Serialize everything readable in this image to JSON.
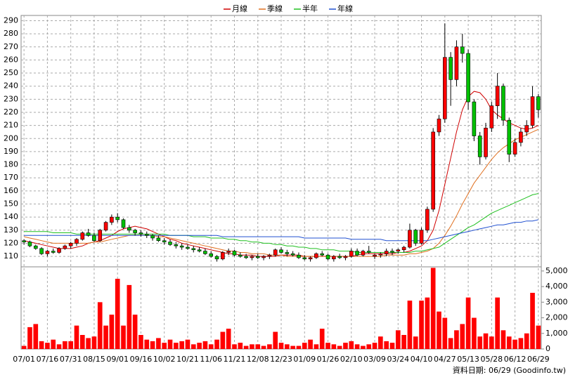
{
  "chart_data": {
    "type": "candlestick",
    "legend": "top",
    "grid": true,
    "source": "資料日期: 06/29 (Goodinfo.tw)",
    "up_color": "#ff0000",
    "down_color": "#00c000",
    "categories": [
      "07/01",
      null,
      null,
      null,
      "07/16",
      null,
      null,
      null,
      "07/31",
      null,
      null,
      null,
      "08/15",
      null,
      null,
      null,
      "09/01",
      null,
      null,
      null,
      "09/16",
      null,
      null,
      null,
      "10/02",
      null,
      null,
      null,
      "10/21",
      null,
      null,
      null,
      "11/06",
      null,
      null,
      null,
      "11/21",
      null,
      null,
      null,
      "12/08",
      null,
      null,
      null,
      "12/23",
      null,
      null,
      null,
      "01/09",
      null,
      null,
      null,
      "01/26",
      null,
      null,
      null,
      "02/10",
      null,
      null,
      null,
      "03/09",
      null,
      null,
      null,
      "03/24",
      null,
      null,
      null,
      "04/10",
      null,
      null,
      null,
      "04/27",
      null,
      null,
      null,
      "05/13",
      null,
      null,
      null,
      "05/28",
      null,
      null,
      null,
      "06/12",
      null,
      null,
      null,
      "06/29"
    ],
    "open": [
      122,
      121,
      118,
      116,
      112,
      114,
      113,
      116,
      118,
      120,
      123,
      128,
      126,
      122,
      130,
      136,
      140,
      138,
      132,
      130,
      128,
      127,
      126,
      124,
      122,
      121,
      119,
      118,
      117,
      116,
      115,
      114,
      112,
      110,
      108,
      113,
      114,
      111,
      110,
      109,
      110,
      109,
      110,
      111,
      115,
      113,
      112,
      111,
      109,
      108,
      109,
      112,
      111,
      108,
      110,
      109,
      110,
      114,
      111,
      114,
      110,
      111,
      112,
      114,
      114,
      115,
      117,
      130,
      120,
      130,
      146,
      205,
      215,
      262,
      245,
      270,
      265,
      228,
      202,
      186,
      208,
      225,
      240,
      214,
      188,
      197,
      205,
      210,
      232
    ],
    "high": [
      123,
      122,
      119,
      117,
      115,
      116,
      117,
      119,
      121,
      124,
      129,
      131,
      128,
      131,
      137,
      142,
      143,
      139,
      134,
      131,
      130,
      129,
      127,
      126,
      124,
      123,
      121,
      120,
      119,
      118,
      117,
      116,
      114,
      111,
      114,
      116,
      115,
      113,
      112,
      111,
      112,
      111,
      112,
      116,
      117,
      115,
      114,
      113,
      111,
      110,
      113,
      114,
      112,
      111,
      112,
      111,
      116,
      116,
      115,
      118,
      112,
      113,
      116,
      116,
      116,
      118,
      135,
      131,
      132,
      148,
      208,
      218,
      288,
      266,
      275,
      280,
      268,
      230,
      205,
      212,
      228,
      250,
      242,
      216,
      200,
      208,
      214,
      240,
      234
    ],
    "low": [
      119,
      117,
      115,
      111,
      110,
      112,
      112,
      115,
      116,
      118,
      122,
      125,
      121,
      121,
      129,
      134,
      136,
      131,
      128,
      126,
      125,
      124,
      122,
      121,
      119,
      118,
      116,
      115,
      115,
      113,
      113,
      111,
      109,
      106,
      107,
      111,
      110,
      109,
      108,
      107,
      108,
      107,
      108,
      110,
      112,
      110,
      110,
      108,
      107,
      106,
      108,
      110,
      107,
      106,
      108,
      107,
      109,
      110,
      110,
      112,
      108,
      109,
      110,
      111,
      112,
      113,
      116,
      118,
      119,
      128,
      144,
      202,
      212,
      225,
      240,
      258,
      222,
      198,
      180,
      184,
      205,
      215,
      210,
      182,
      186,
      194,
      202,
      208,
      216
    ],
    "close": [
      121,
      118,
      116,
      112,
      114,
      113,
      116,
      118,
      120,
      123,
      128,
      126,
      122,
      130,
      136,
      140,
      138,
      132,
      130,
      128,
      127,
      126,
      124,
      122,
      121,
      119,
      118,
      117,
      116,
      115,
      114,
      112,
      110,
      108,
      113,
      114,
      111,
      110,
      109,
      110,
      109,
      110,
      111,
      115,
      113,
      112,
      111,
      109,
      108,
      109,
      112,
      111,
      108,
      110,
      109,
      110,
      114,
      111,
      114,
      113,
      111,
      112,
      114,
      113,
      115,
      117,
      130,
      120,
      130,
      146,
      205,
      215,
      262,
      245,
      270,
      265,
      228,
      202,
      186,
      208,
      225,
      240,
      214,
      188,
      197,
      205,
      210,
      232,
      222
    ],
    "ylim": [
      102,
      294
    ],
    "yticks": [
      110,
      120,
      130,
      140,
      150,
      160,
      170,
      180,
      190,
      200,
      210,
      220,
      230,
      240,
      250,
      260,
      270,
      280,
      290
    ],
    "series": [
      {
        "name": "月線",
        "color": "#d00000",
        "values": [
          122,
          121,
          120,
          119,
          118,
          117,
          116,
          116,
          116,
          117,
          118,
          120,
          121,
          122,
          124,
          126,
          129,
          131,
          132,
          133,
          132,
          131,
          129,
          127,
          125,
          123,
          122,
          120,
          119,
          118,
          117,
          116,
          115,
          114,
          113,
          112,
          112,
          111,
          111,
          111,
          110,
          110,
          110,
          110,
          111,
          111,
          111,
          111,
          110,
          110,
          110,
          110,
          110,
          110,
          110,
          110,
          110,
          111,
          112,
          112,
          112,
          112,
          112,
          112,
          113,
          113,
          114,
          116,
          118,
          122,
          130,
          145,
          165,
          185,
          205,
          222,
          232,
          236,
          235,
          230,
          222,
          218,
          215,
          212,
          210,
          208,
          207,
          208,
          210
        ]
      },
      {
        "name": "季線",
        "color": "#e07020",
        "values": [
          125,
          124,
          123,
          122,
          121,
          120,
          120,
          120,
          120,
          120,
          120,
          120,
          121,
          121,
          122,
          123,
          124,
          125,
          126,
          126,
          126,
          126,
          126,
          125,
          125,
          124,
          123,
          122,
          121,
          120,
          119,
          118,
          117,
          116,
          115,
          114,
          114,
          113,
          113,
          112,
          112,
          112,
          111,
          111,
          111,
          110,
          110,
          110,
          110,
          110,
          110,
          110,
          110,
          110,
          110,
          110,
          110,
          110,
          110,
          110,
          110,
          110,
          111,
          111,
          111,
          111,
          112,
          112,
          113,
          114,
          116,
          120,
          126,
          133,
          141,
          150,
          158,
          166,
          172,
          178,
          184,
          189,
          193,
          196,
          199,
          201,
          203,
          205,
          207
        ]
      },
      {
        "name": "半年",
        "color": "#20c020",
        "values": [
          129,
          129,
          129,
          129,
          129,
          128,
          128,
          128,
          128,
          127,
          127,
          127,
          127,
          127,
          127,
          127,
          127,
          127,
          127,
          127,
          127,
          127,
          127,
          127,
          127,
          126,
          126,
          126,
          126,
          125,
          125,
          125,
          124,
          124,
          124,
          123,
          123,
          122,
          122,
          121,
          121,
          120,
          120,
          119,
          119,
          118,
          118,
          117,
          117,
          116,
          116,
          115,
          115,
          115,
          114,
          114,
          114,
          113,
          113,
          113,
          113,
          113,
          113,
          113,
          113,
          113,
          113,
          114,
          114,
          115,
          116,
          117,
          120,
          123,
          126,
          129,
          132,
          134,
          137,
          140,
          143,
          145,
          147,
          149,
          151,
          153,
          155,
          157,
          158
        ]
      },
      {
        "name": "年線",
        "color": "#2050d0",
        "values": [
          126,
          126,
          126,
          126,
          126,
          126,
          126,
          126,
          126,
          126,
          126,
          126,
          126,
          126,
          126,
          126,
          126,
          126,
          126,
          126,
          126,
          126,
          126,
          126,
          126,
          126,
          126,
          126,
          126,
          126,
          126,
          126,
          126,
          126,
          125,
          125,
          125,
          125,
          125,
          125,
          125,
          125,
          125,
          125,
          125,
          125,
          125,
          125,
          124,
          124,
          124,
          124,
          124,
          124,
          124,
          124,
          123,
          123,
          123,
          123,
          123,
          123,
          122,
          122,
          122,
          122,
          122,
          122,
          122,
          122,
          123,
          124,
          125,
          126,
          127,
          128,
          129,
          130,
          131,
          132,
          133,
          134,
          134,
          135,
          136,
          136,
          137,
          137,
          138
        ]
      }
    ],
    "volume": {
      "color": "#ff0000",
      "axis": "y2",
      "values": [
        200,
        1400,
        1600,
        500,
        400,
        600,
        300,
        500,
        500,
        1500,
        900,
        700,
        800,
        3000,
        1500,
        2200,
        4500,
        1500,
        4100,
        2200,
        900,
        600,
        500,
        700,
        400,
        600,
        400,
        500,
        600,
        300,
        400,
        500,
        300,
        600,
        1100,
        1300,
        300,
        400,
        200,
        300,
        300,
        200,
        300,
        1100,
        400,
        300,
        200,
        200,
        400,
        600,
        300,
        1300,
        400,
        300,
        200,
        400,
        500,
        300,
        200,
        300,
        400,
        800,
        500,
        400,
        1200,
        900,
        3100,
        800,
        3100,
        3300,
        5200,
        2400,
        2000,
        700,
        1200,
        1600,
        3300,
        2000,
        800,
        1000,
        800,
        3300,
        1200,
        800,
        600,
        700,
        1000,
        3600,
        1500
      ]
    },
    "y2lim": [
      0,
      5400
    ],
    "y2ticks": [
      0,
      {
        "value": 1000,
        "label": "1,000"
      },
      {
        "value": 2000,
        "label": "2,000"
      },
      {
        "value": 3000,
        "label": "3,000"
      },
      {
        "value": 4000,
        "label": "4,000"
      },
      {
        "value": 5000,
        "label": "5,000"
      }
    ]
  }
}
